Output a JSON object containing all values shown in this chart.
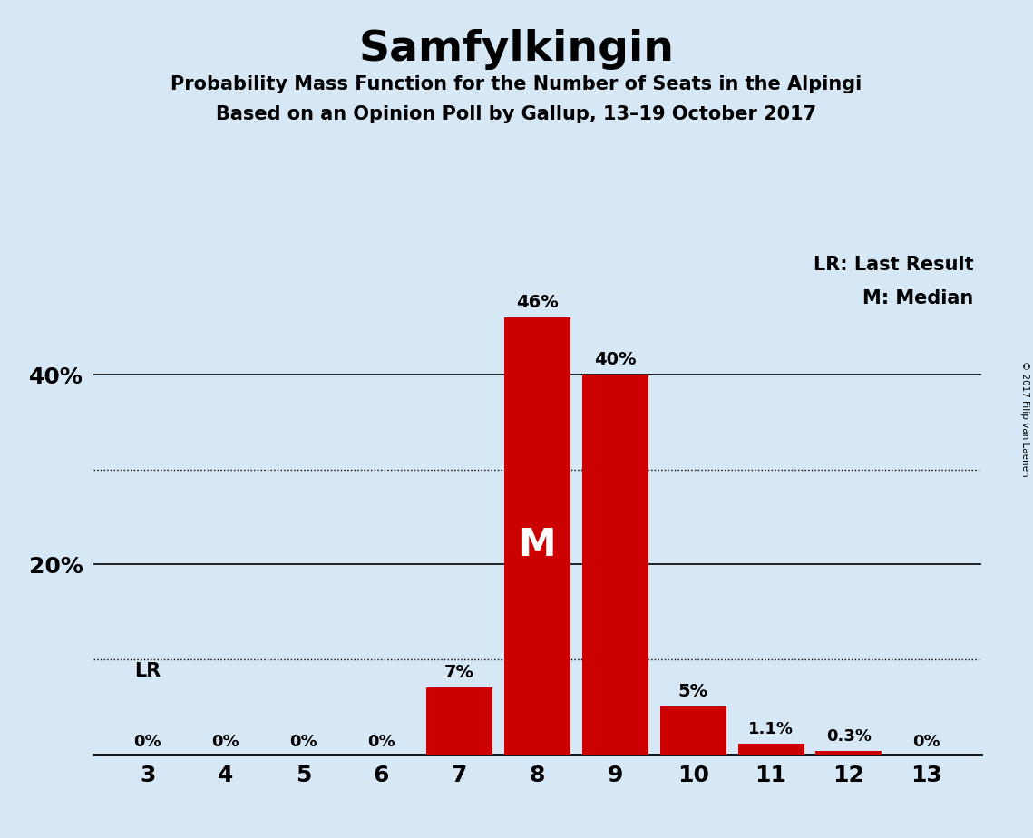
{
  "title": "Samfylkingin",
  "subtitle1": "Probability Mass Function for the Number of Seats in the Alpingi",
  "subtitle2": "Based on an Opinion Poll by Gallup, 13–19 October 2017",
  "copyright": "© 2017 Filip van Laenen",
  "seats": [
    3,
    4,
    5,
    6,
    7,
    8,
    9,
    10,
    11,
    12,
    13
  ],
  "probabilities": [
    0.0,
    0.0,
    0.0,
    0.0,
    7.0,
    46.0,
    40.0,
    5.0,
    1.1,
    0.3,
    0.0
  ],
  "bar_labels": [
    "0%",
    "0%",
    "0%",
    "0%",
    "7%",
    "46%",
    "40%",
    "5%",
    "1.1%",
    "0.3%",
    "0%"
  ],
  "bar_color": "#cc0000",
  "background_color": "#d6e8f5",
  "median_seat": 8,
  "last_result_seat": 3,
  "ylim": [
    0,
    53
  ],
  "dotted_yticks": [
    10,
    30
  ],
  "solid_yticks": [
    20,
    40
  ],
  "legend_text1": "LR: Last Result",
  "legend_text2": "M: Median",
  "lr_label": "LR",
  "lr_label_seat": 3
}
